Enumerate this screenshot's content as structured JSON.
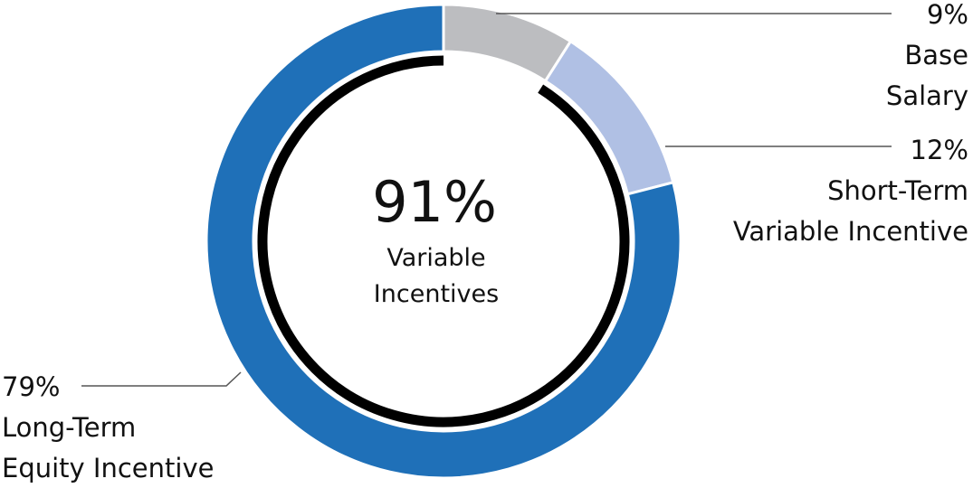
{
  "chart_data": {
    "type": "pie",
    "categories": [
      "Base\nSalary",
      "Short-Term\nVariable Incentive",
      "Long-Term\nEquity Incentive"
    ],
    "values": [
      9,
      12,
      79
    ],
    "value_labels": [
      "9%",
      "12%",
      "79%"
    ],
    "colors": [
      "#bcbdc0",
      "#b0c0e4",
      "#1f70b8"
    ],
    "center": {
      "value": 91,
      "value_label": "91%",
      "label": "Variable\nIncentives",
      "color": "#000000"
    }
  }
}
